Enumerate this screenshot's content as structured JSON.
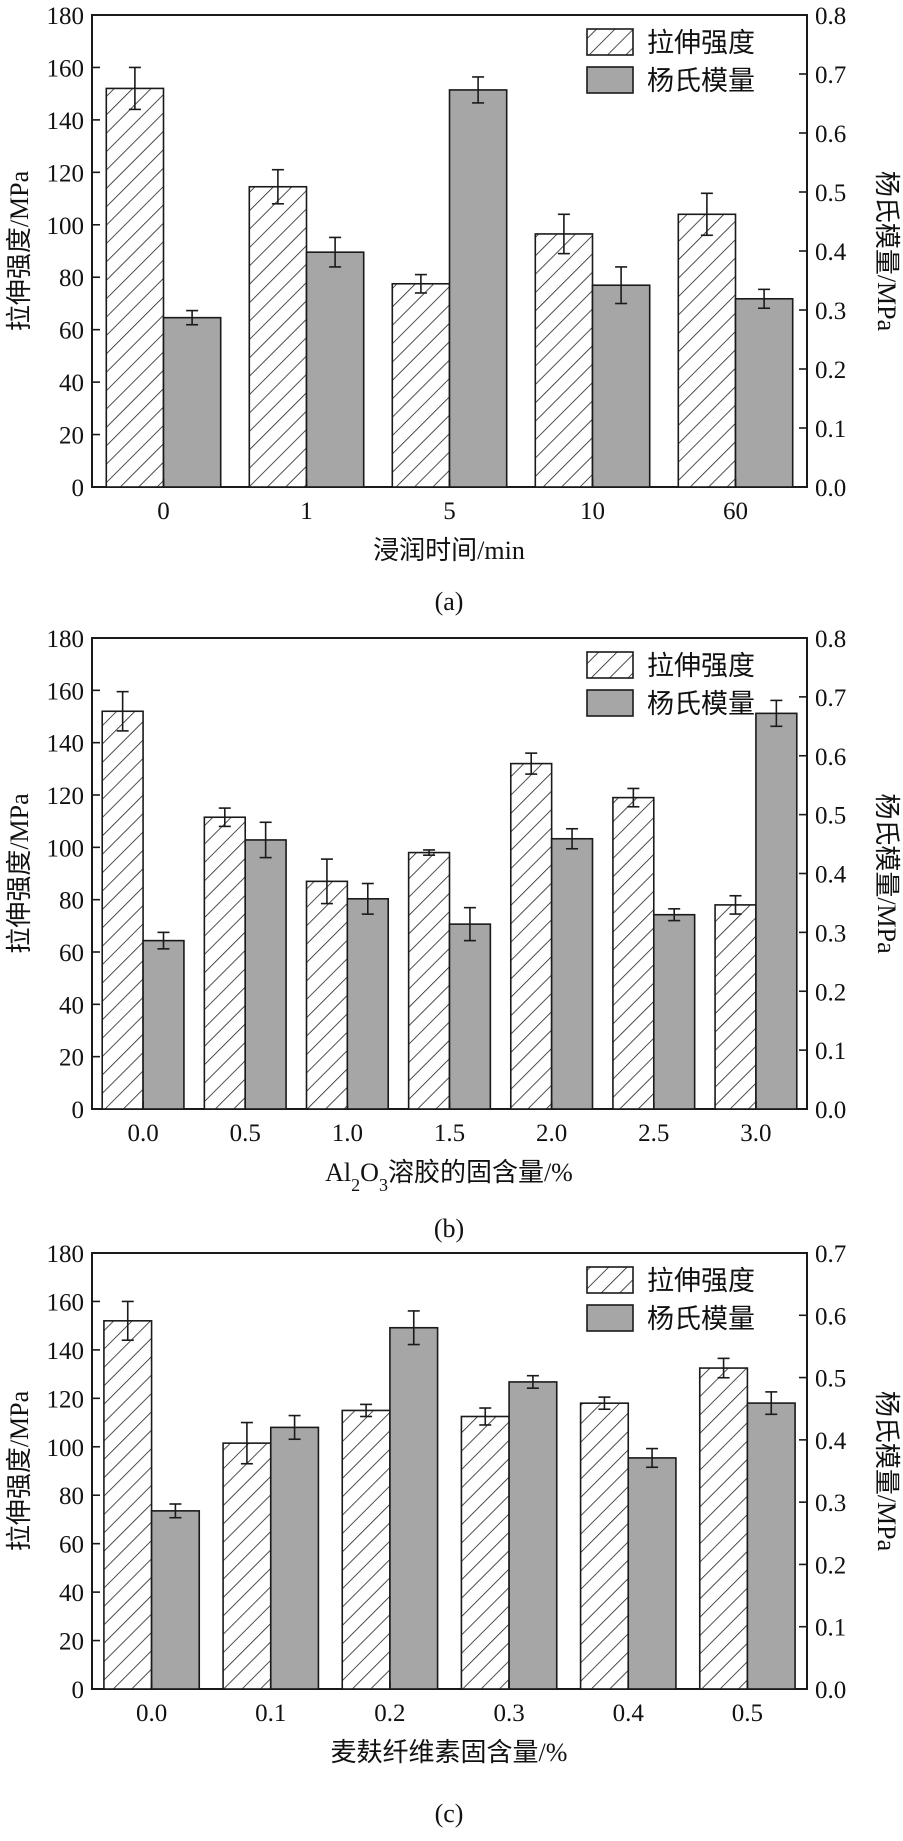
{
  "legend": {
    "strength": "拉伸强度",
    "modulus": "杨氏模量"
  },
  "colors": {
    "modulus_fill": "#a6a6a6",
    "strength_fill": "#ffffff",
    "stroke": "#1a1a1a"
  },
  "chart_data": [
    {
      "type": "bar",
      "panel_label": "(a)",
      "xlabel": "浸润时间/min",
      "xlabel_parts": [],
      "ylabel_left": "拉伸强度/MPa",
      "ylabel_right": "杨氏模量/MPa",
      "ylim_left": [
        0,
        180
      ],
      "ylim_right": [
        0,
        0.8
      ],
      "yticks_left": [
        "0",
        "20",
        "40",
        "60",
        "80",
        "100",
        "120",
        "140",
        "160",
        "180"
      ],
      "yticks_right": [
        "0.0",
        "0.1",
        "0.2",
        "0.3",
        "0.4",
        "0.5",
        "0.6",
        "0.7",
        "0.8"
      ],
      "categories": [
        "0",
        "1",
        "5",
        "10",
        "60"
      ],
      "legend_position": "top-right",
      "series": [
        {
          "name": "拉伸强度",
          "axis": "left",
          "pattern": "hatched",
          "values": [
            152,
            114.5,
            77.5,
            96.5,
            104
          ],
          "errors": [
            8,
            6.5,
            3.5,
            7.5,
            8
          ]
        },
        {
          "name": "杨氏模量",
          "axis": "right",
          "pattern": "solid",
          "values": [
            0.287,
            0.398,
            0.673,
            0.342,
            0.319
          ],
          "errors": [
            0.012,
            0.025,
            0.022,
            0.031,
            0.016
          ]
        }
      ]
    },
    {
      "type": "bar",
      "panel_label": "(b)",
      "xlabel": "",
      "xlabel_parts": [
        "Al",
        "2",
        "O",
        "3",
        "溶胶的固含量/%"
      ],
      "ylabel_left": "拉伸强度/MPa",
      "ylabel_right": "杨氏模量/MPa",
      "ylim_left": [
        0,
        180
      ],
      "ylim_right": [
        0,
        0.8
      ],
      "yticks_left": [
        "0",
        "20",
        "40",
        "60",
        "80",
        "100",
        "120",
        "140",
        "160",
        "180"
      ],
      "yticks_right": [
        "0.0",
        "0.1",
        "0.2",
        "0.3",
        "0.4",
        "0.5",
        "0.6",
        "0.7",
        "0.8"
      ],
      "categories": [
        "0.0",
        "0.5",
        "1.0",
        "1.5",
        "2.0",
        "2.5",
        "3.0"
      ],
      "legend_position": "top-right",
      "series": [
        {
          "name": "拉伸强度",
          "axis": "left",
          "pattern": "hatched",
          "values": [
            152,
            111.5,
            87,
            98,
            132,
            119,
            78
          ],
          "errors": [
            7.5,
            3.5,
            8.5,
            1,
            4,
            3.5,
            3.5
          ]
        },
        {
          "name": "杨氏模量",
          "axis": "right",
          "pattern": "solid",
          "values": [
            0.286,
            0.457,
            0.357,
            0.314,
            0.459,
            0.33,
            0.672
          ],
          "errors": [
            0.014,
            0.03,
            0.026,
            0.028,
            0.017,
            0.01,
            0.022
          ]
        }
      ]
    },
    {
      "type": "bar",
      "panel_label": "(c)",
      "xlabel": "麦麸纤维素固含量/%",
      "xlabel_parts": [],
      "ylabel_left": "拉伸强度/MPa",
      "ylabel_right": "杨氏模量/MPa",
      "ylim_left": [
        0,
        180
      ],
      "ylim_right": [
        0,
        0.7
      ],
      "yticks_left": [
        "0",
        "20",
        "40",
        "60",
        "80",
        "100",
        "120",
        "140",
        "160",
        "180"
      ],
      "yticks_right": [
        "0.0",
        "0.1",
        "0.2",
        "0.3",
        "0.4",
        "0.5",
        "0.6",
        "0.7"
      ],
      "categories": [
        "0.0",
        "0.1",
        "0.2",
        "0.3",
        "0.4",
        "0.5"
      ],
      "legend_position": "top-right",
      "series": [
        {
          "name": "拉伸强度",
          "axis": "left",
          "pattern": "hatched",
          "values": [
            152,
            101.5,
            115,
            112.5,
            118,
            132.5
          ],
          "errors": [
            8,
            8.5,
            2.5,
            3.5,
            2.5,
            4
          ]
        },
        {
          "name": "杨氏模量",
          "axis": "right",
          "pattern": "solid",
          "values": [
            0.286,
            0.42,
            0.58,
            0.493,
            0.371,
            0.459
          ],
          "errors": [
            0.011,
            0.019,
            0.027,
            0.01,
            0.015,
            0.018
          ]
        }
      ]
    }
  ]
}
